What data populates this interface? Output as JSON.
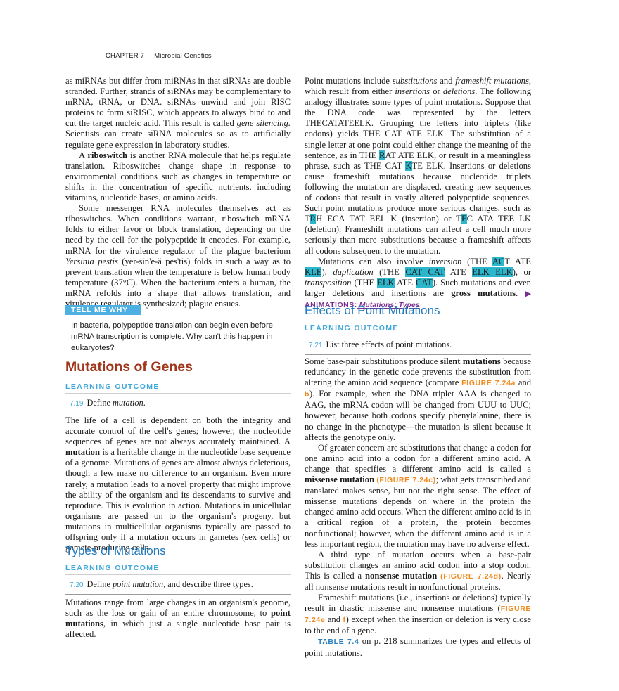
{
  "header": {
    "chapter": "CHAPTER 7",
    "title": "Microbial Genetics"
  },
  "left": {
    "p1": [
      "as miRNAs but differ from miRNAs in that siRNAs are double stranded. Further, strands of siRNAs may be complementary to mRNA, tRNA, or DNA. siRNAs unwind and join RISC proteins to form siRISC, which appears to always bind to and cut the target nucleic acid. This result is called ",
      "gene silencing.",
      " Scientists can create siRNA molecules so as to artificially regulate gene expression in laboratory studies."
    ],
    "p2": [
      "A ",
      "riboswitch",
      " is another RNA molecule that helps regulate translation. Riboswitches change shape in response to environmental conditions such as changes in temperature or shifts in the concentration of specific nutrients, including vitamins, nucleotide bases, or amino acids."
    ],
    "p3": [
      "Some messenger RNA molecules themselves act as riboswitches. When conditions warrant, riboswitch mRNA folds to either favor or block translation, depending on the need by the cell for the polypeptide it encodes. For example, mRNA for the virulence regulator of the plague bacterium ",
      "Yersinia pestis",
      " (yer-sin'ē-ă pes'tis) folds in such a way as to prevent translation when the temperature is below human body temperature (37°C). When the bacterium enters a human, the mRNA refolds into a shape that allows translation, and virulence regulator is synthesized; plague ensues."
    ],
    "tell_me_why": {
      "label": "TELL ME WHY",
      "text": "In bacteria, polypeptide translation can begin even before mRNA transcription is complete. Why can't this happen in eukaryotes?"
    },
    "section_title": "Mutations of Genes",
    "lo1": {
      "heading": "LEARNING OUTCOME",
      "number": "7.19",
      "text": [
        "Define ",
        "mutation",
        "."
      ]
    },
    "p4": [
      "The life of a cell is dependent on both the integrity and accurate control of the cell's genes; however, the nucleotide sequences of genes are not always accurately maintained. A ",
      "mutation",
      " is a heritable change in the nucleotide base sequence of a genome. Mutations of genes are almost always deleterious, though a few make no difference to an organism. Even more rarely, a mutation leads to a novel property that might improve the ability of the organism and its descendants to survive and reproduce. This is evolution in action. Mutations in unicellular organisms are passed on to the organism's progeny, but mutations in multicellular organisms typically are passed to offspring only if a mutation occurs in gametes (sex cells) or gamete-producing cells."
    ],
    "subtitle": "Types of Mutations",
    "lo2": {
      "heading": "LEARNING OUTCOME",
      "number": "7.20",
      "text": [
        "Define ",
        "point mutation",
        ", and describe three types."
      ]
    },
    "p5": [
      "Mutations range from large changes in an organism's genome, such as the loss or gain of an entire chromosome, to ",
      "point mutations",
      ", in which just a single nucleotide base pair is affected."
    ]
  },
  "right": {
    "p6": [
      "Point mutations include ",
      "substitutions",
      " and ",
      "frameshift mutations",
      ", which result from either ",
      "insertions",
      " or ",
      "deletions",
      ". The following analogy illustrates some types of point mutations. Suppose that the DNA code was represented by the letters THECATATEELK. Grouping the letters into triplets (like codons) yields THE CAT ATE ELK. The substitution of a single letter at one point could either change the meaning of the sentence, as in THE ",
      "R",
      "AT ATE ELK, or result in a meaningless phrase, such as THE CAT ",
      "K",
      "TE ELK. Insertions or deletions cause frameshift mutations because nucleotide triplets following the mutation are displaced, creating new sequences of codons that result in vastly altered polypeptide sequences. Such point mutations produce more serious changes, such as T",
      "R",
      "H ECA TAT EEL K (insertion) or T",
      "E",
      "C ATA TEE LK (deletion). Frameshift mutations can affect a cell much more seriously than mere substitutions because a frameshift affects all codons subsequent to the mutation."
    ],
    "p7": [
      "Mutations can also involve ",
      "inversion",
      " (THE ",
      "AC",
      "T ATE ",
      "KLE",
      "), ",
      "duplication",
      " (THE ",
      "CAT CAT",
      " ATE ",
      "ELK ELK",
      "), or ",
      "transposition",
      " (THE ",
      "ELK",
      " ATE ",
      "CAT",
      "). Such mutations and even larger deletions and insertions are ",
      "gross mutations",
      ". ",
      "▶ ANIMATIONS:",
      " Mutations: Types"
    ],
    "subtitle": "Effects of Point Mutations",
    "lo3": {
      "heading": "LEARNING OUTCOME",
      "number": "7.21",
      "text": [
        "List three effects of point mutations."
      ]
    },
    "p8": [
      "Some base-pair substitutions produce ",
      "silent mutations",
      " because redundancy in the genetic code prevents the substitution from altering the amino acid sequence (compare ",
      "FIGURE 7.24a",
      " and ",
      "b",
      "). For example, when the DNA triplet AAA is changed to AAG, the mRNA codon will be changed from UUU to UUC; however, because both codons specify phenylalanine, there is no change in the phenotype—the mutation is silent because it affects the genotype only."
    ],
    "p9": [
      "Of greater concern are substitutions that change a codon for one amino acid into a codon for a different amino acid. A change that specifies a different amino acid is called a ",
      "missense mutation",
      " ",
      "(FIGURE 7.24c)",
      "; what gets transcribed and translated makes sense, but not the right sense. The effect of missense mutations depends on where in the protein the changed amino acid occurs. When the different amino acid is in a critical region of a protein, the protein becomes nonfunctional; however, when the different amino acid is in a less important region, the mutation may have no adverse effect."
    ],
    "p10": [
      "A third type of mutation occurs when a base-pair substitution changes an amino acid codon into a stop codon. This is called a ",
      "nonsense mutation",
      " ",
      "(FIGURE 7.24d)",
      ". Nearly all nonsense mutations result in nonfunctional proteins."
    ],
    "p11": [
      "Frameshift mutations (i.e., insertions or deletions) typically result in drastic missense and nonsense mutations (",
      "FIGURE 7.24e",
      " and ",
      "f",
      ") except when the insertion or deletion is very close to the end of a gene."
    ],
    "p12": [
      "TABLE 7.4",
      " on p. 218 summarizes the types and effects of point mutations."
    ]
  }
}
